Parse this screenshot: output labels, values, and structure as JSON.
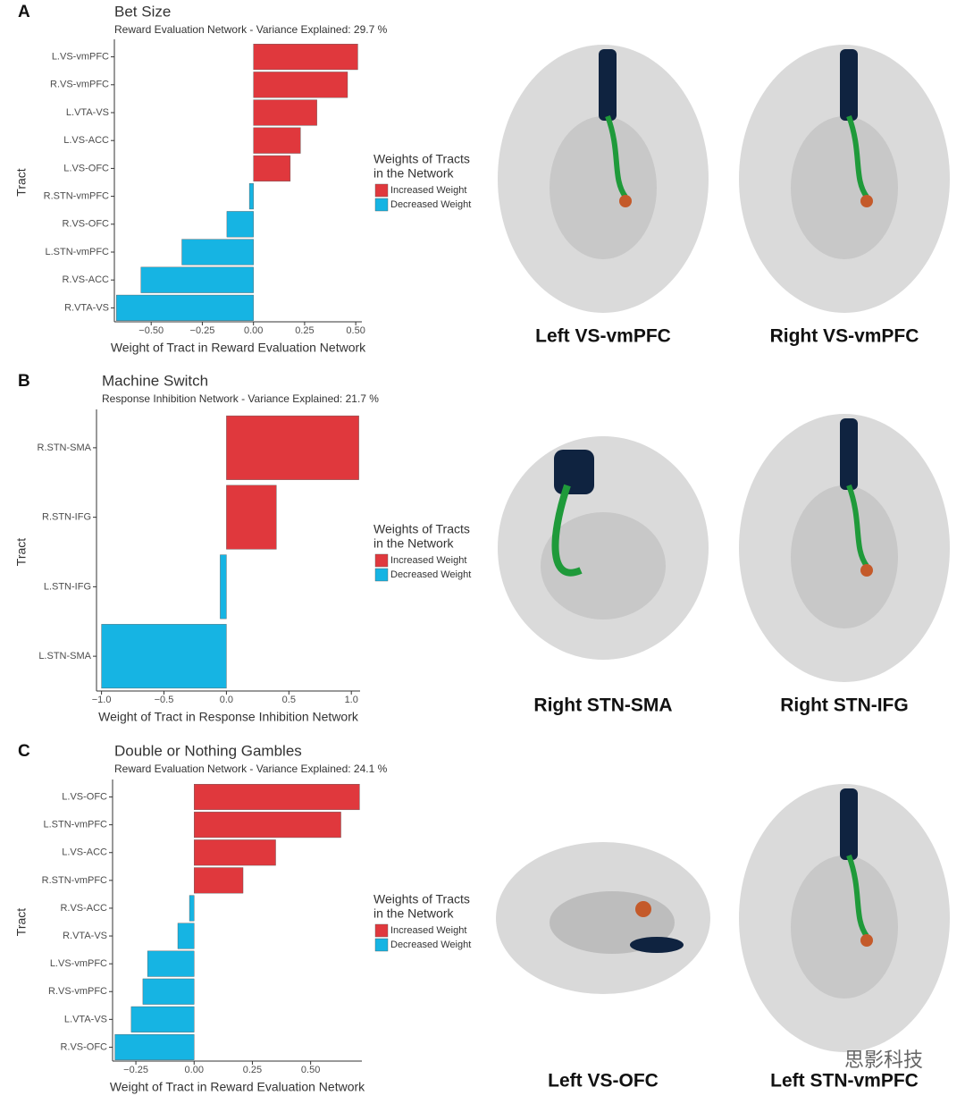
{
  "chart_data": [
    {
      "type": "bar",
      "panel": "A",
      "title": "Bet Size",
      "subtitle": "Reward Evaluation Network - Variance Explained: 29.7 %",
      "xlabel": "Weight of Tract in Reward Evaluation Network",
      "ylabel": "Tract",
      "categories": [
        "L.VS-vmPFC",
        "R.VS-vmPFC",
        "L.VTA-VS",
        "L.VS-ACC",
        "L.VS-OFC",
        "R.STN-vmPFC",
        "R.VS-OFC",
        "L.STN-vmPFC",
        "R.VS-ACC",
        "R.VTA-VS"
      ],
      "values": [
        0.51,
        0.46,
        0.31,
        0.23,
        0.18,
        -0.02,
        -0.13,
        -0.35,
        -0.55,
        -0.67
      ],
      "xlim": [
        -0.68,
        0.53
      ],
      "xticks": [
        {
          "value": -0.5,
          "label": "−0.50"
        },
        {
          "value": -0.25,
          "label": "−0.25"
        },
        {
          "value": 0,
          "label": "0.00"
        },
        {
          "value": 0.25,
          "label": "0.25"
        },
        {
          "value": 0.5,
          "label": "0.50"
        }
      ],
      "legend": {
        "title": [
          "Weights of Tracts",
          "in the Network"
        ],
        "items": [
          {
            "name": "Increased Weight",
            "color": "#e0383d"
          },
          {
            "name": "Decreased Weight",
            "color": "#16b4e3"
          }
        ]
      },
      "images": [
        {
          "caption": "Left VS-vmPFC"
        },
        {
          "caption": "Right VS-vmPFC"
        }
      ]
    },
    {
      "type": "bar",
      "panel": "B",
      "title": "Machine Switch",
      "subtitle": "Response Inhibition Network - Variance Explained: 21.7 %",
      "xlabel": "Weight of Tract in Response Inhibition Network",
      "ylabel": "Tract",
      "categories": [
        "R.STN-SMA",
        "R.STN-IFG",
        "L.STN-IFG",
        "L.STN-SMA"
      ],
      "values": [
        1.06,
        0.4,
        -0.05,
        -1.0
      ],
      "xlim": [
        -1.04,
        1.07
      ],
      "xticks": [
        {
          "value": -1,
          "label": "−1.0"
        },
        {
          "value": -0.5,
          "label": "−0.5"
        },
        {
          "value": 0,
          "label": "0.0"
        },
        {
          "value": 0.5,
          "label": "0.5"
        },
        {
          "value": 1,
          "label": "1.0"
        }
      ],
      "legend": {
        "title": [
          "Weights of Tracts",
          "in the Network"
        ],
        "items": [
          {
            "name": "Increased Weight",
            "color": "#e0383d"
          },
          {
            "name": "Decreased Weight",
            "color": "#16b4e3"
          }
        ]
      },
      "images": [
        {
          "caption": "Right STN-SMA"
        },
        {
          "caption": "Right STN-IFG"
        }
      ]
    },
    {
      "type": "bar",
      "panel": "C",
      "title": "Double or Nothing Gambles",
      "subtitle": "Reward Evaluation Network - Variance Explained: 24.1 %",
      "xlabel": "Weight of Tract in Reward Evaluation Network",
      "ylabel": "Tract",
      "categories": [
        "L.VS-OFC",
        "L.STN-vmPFC",
        "L.VS-ACC",
        "R.STN-vmPFC",
        "R.VS-ACC",
        "R.VTA-VS",
        "L.VS-vmPFC",
        "R.VS-vmPFC",
        "L.VTA-VS",
        "R.VS-OFC"
      ],
      "values": [
        0.71,
        0.63,
        0.35,
        0.21,
        -0.02,
        -0.07,
        -0.2,
        -0.22,
        -0.27,
        -0.34
      ],
      "xlim": [
        -0.35,
        0.72
      ],
      "xticks": [
        {
          "value": -0.25,
          "label": "−0.25"
        },
        {
          "value": 0,
          "label": "0.00"
        },
        {
          "value": 0.25,
          "label": "0.25"
        },
        {
          "value": 0.5,
          "label": "0.50"
        }
      ],
      "legend": {
        "title": [
          "Weights of Tracts",
          "in the Network"
        ],
        "items": [
          {
            "name": "Increased Weight",
            "color": "#e0383d"
          },
          {
            "name": "Decreased Weight",
            "color": "#16b4e3"
          }
        ]
      },
      "images": [
        {
          "caption": "Left VS-OFC"
        },
        {
          "caption": "Left STN-vmPFC"
        }
      ]
    }
  ],
  "watermark": "思影科技"
}
